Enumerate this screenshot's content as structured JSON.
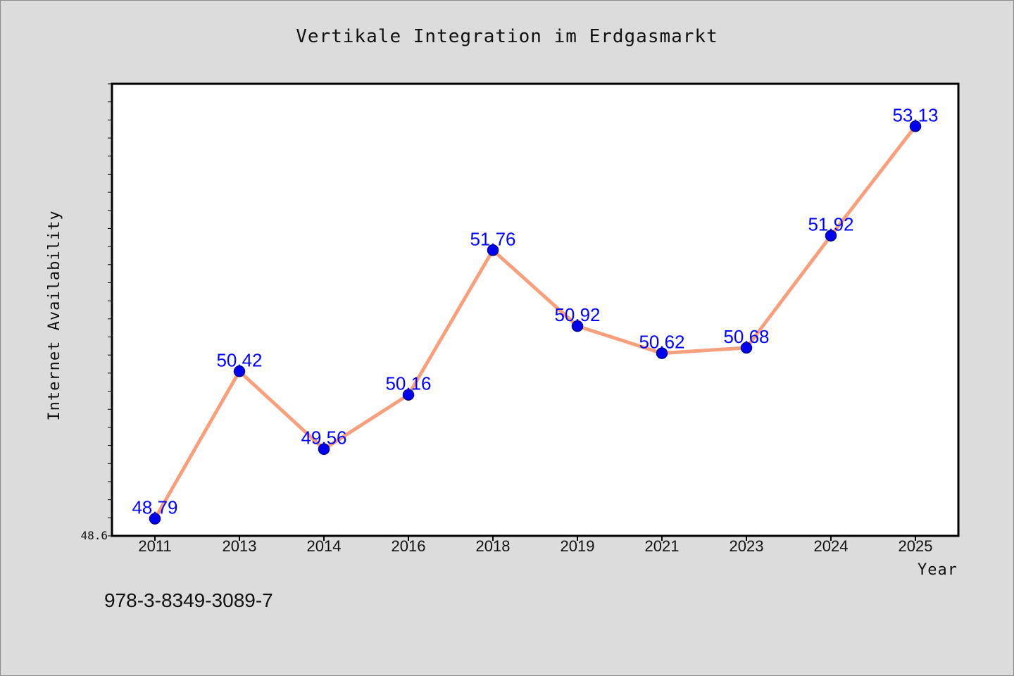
{
  "colors": {
    "background": "#dcdcdc",
    "plot_area": "#ffffff",
    "frame": "#000000",
    "line": "#f7a07e",
    "marker": "#0000ee",
    "marker_edge": "#00008b",
    "data_label": "#0000ff"
  },
  "footer": {
    "identifier": "978-3-8349-3089-7"
  },
  "chart_data": {
    "type": "line",
    "title": "Vertikale Integration im Erdgasmarkt",
    "xlabel": "Year",
    "ylabel": "Internet Availability",
    "categories": [
      "2011",
      "2013",
      "2014",
      "2016",
      "2018",
      "2019",
      "2021",
      "2023",
      "2024",
      "2025"
    ],
    "values": [
      48.79,
      50.42,
      49.56,
      50.16,
      51.76,
      50.92,
      50.62,
      50.68,
      51.92,
      53.13
    ],
    "data_labels": [
      "48.79",
      "50.42",
      "49.56",
      "50.16",
      "51.76",
      "50.92",
      "50.62",
      "50.68",
      "51.92",
      "53.13"
    ],
    "ylim": [
      48.6,
      53.6
    ],
    "y_tick_labels": [
      "48.6"
    ],
    "grid": false,
    "legend": "none"
  }
}
